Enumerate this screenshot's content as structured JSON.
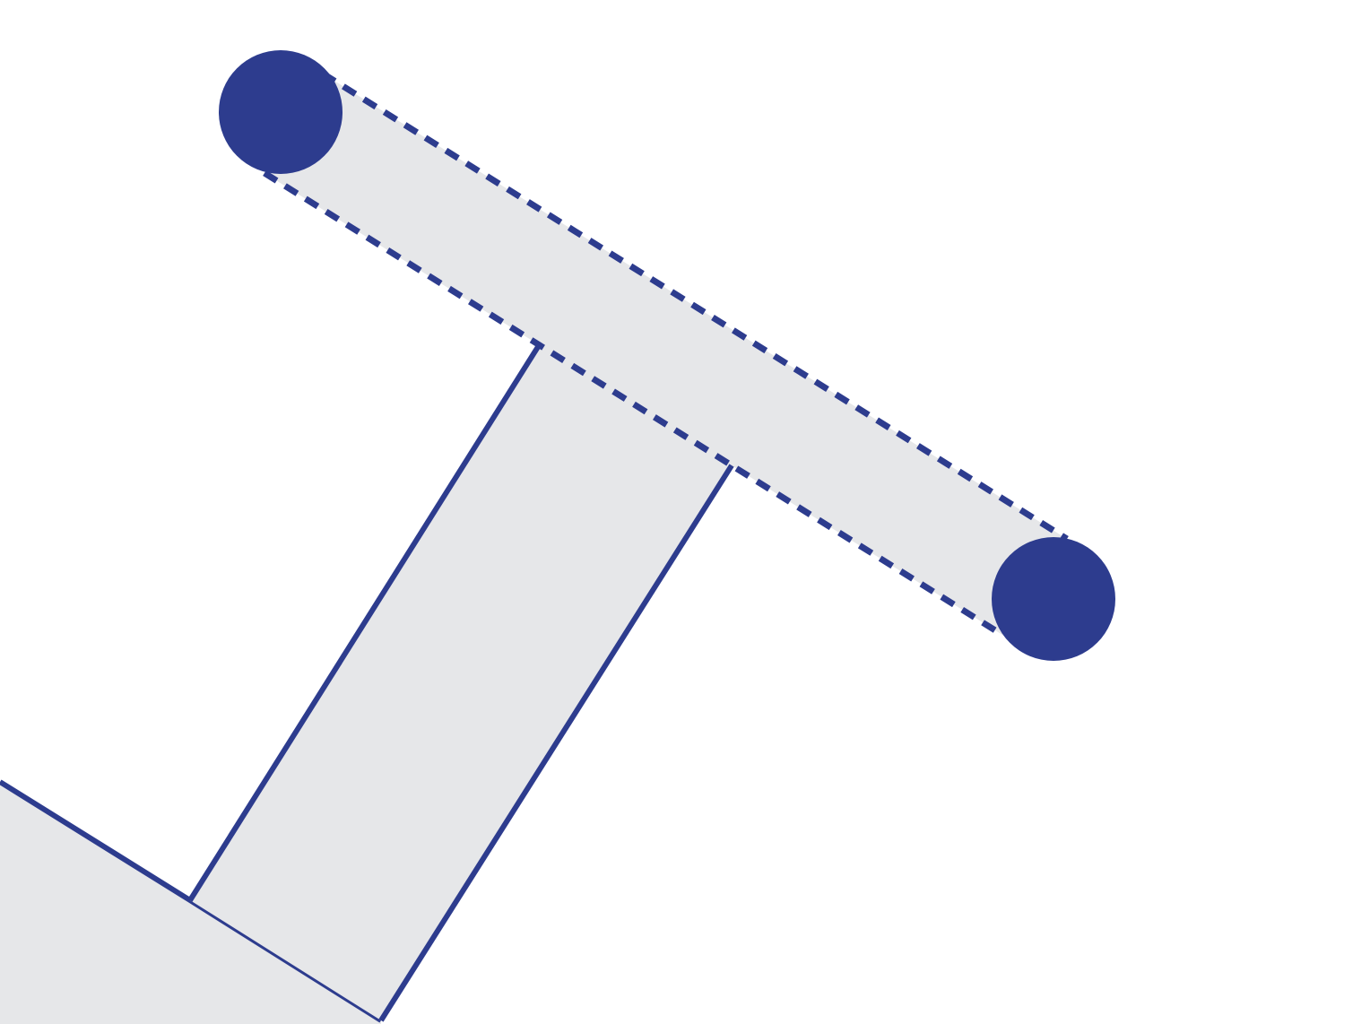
{
  "diagram": {
    "description_elements": [
      "base-block",
      "stem-bar",
      "crossbar-guide",
      "endpoint-handle-left",
      "endpoint-handle-right"
    ],
    "colors": {
      "background": "#ffffff",
      "fill": "#e6e7e9",
      "stroke": "#2d3c8e",
      "handle": "#2d3c8e"
    },
    "crossbar_style": "dashed",
    "stem_style": "solid"
  }
}
